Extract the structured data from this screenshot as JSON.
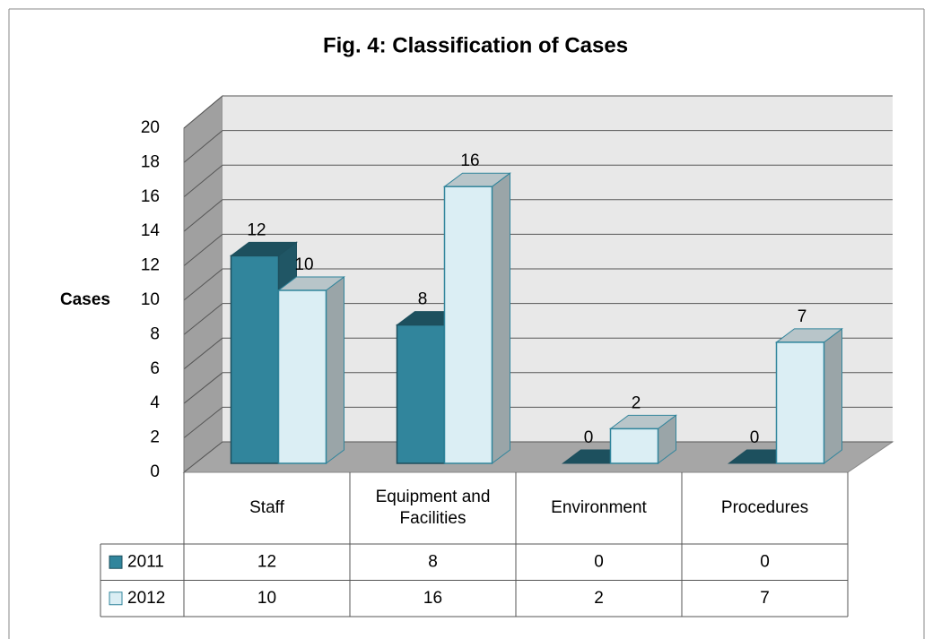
{
  "chart_data": {
    "type": "bar",
    "title": "Fig. 4: Classification of Cases",
    "y_label": "Cases",
    "categories": [
      "Staff",
      "Equipment and Facilities",
      "Environment",
      "Procedures"
    ],
    "series": [
      {
        "name": "2011",
        "color": "#31859c",
        "values": [
          12,
          8,
          0,
          0
        ]
      },
      {
        "name": "2012",
        "color": "#dbeef4",
        "values": [
          10,
          16,
          2,
          7
        ]
      }
    ],
    "ylim": [
      0,
      20
    ],
    "yticks": [
      0,
      2,
      4,
      6,
      8,
      10,
      12,
      14,
      16,
      18,
      20
    ],
    "grid": true,
    "data_table": true
  }
}
